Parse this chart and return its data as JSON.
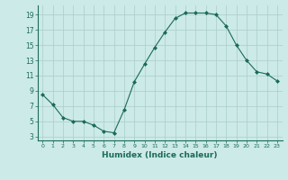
{
  "x": [
    0,
    1,
    2,
    3,
    4,
    5,
    6,
    7,
    8,
    9,
    10,
    11,
    12,
    13,
    14,
    15,
    16,
    17,
    18,
    19,
    20,
    21,
    22,
    23
  ],
  "y": [
    8.5,
    7.2,
    5.5,
    5.0,
    5.0,
    4.5,
    3.7,
    3.5,
    6.5,
    10.2,
    12.5,
    14.7,
    16.7,
    18.5,
    19.2,
    19.2,
    19.2,
    19.0,
    17.5,
    15.0,
    13.0,
    11.5,
    11.2,
    10.3
  ],
  "line_color": "#1a6b5a",
  "marker": "D",
  "marker_size": 2,
  "bg_color": "#cceae7",
  "grid_color": "#aaccca",
  "xlabel": "Humidex (Indice chaleur)",
  "xlim": [
    -0.5,
    23.5
  ],
  "ylim": [
    2.5,
    20.2
  ],
  "yticks": [
    3,
    5,
    7,
    9,
    11,
    13,
    15,
    17,
    19
  ],
  "xticks": [
    0,
    1,
    2,
    3,
    4,
    5,
    6,
    7,
    8,
    9,
    10,
    11,
    12,
    13,
    14,
    15,
    16,
    17,
    18,
    19,
    20,
    21,
    22,
    23
  ]
}
